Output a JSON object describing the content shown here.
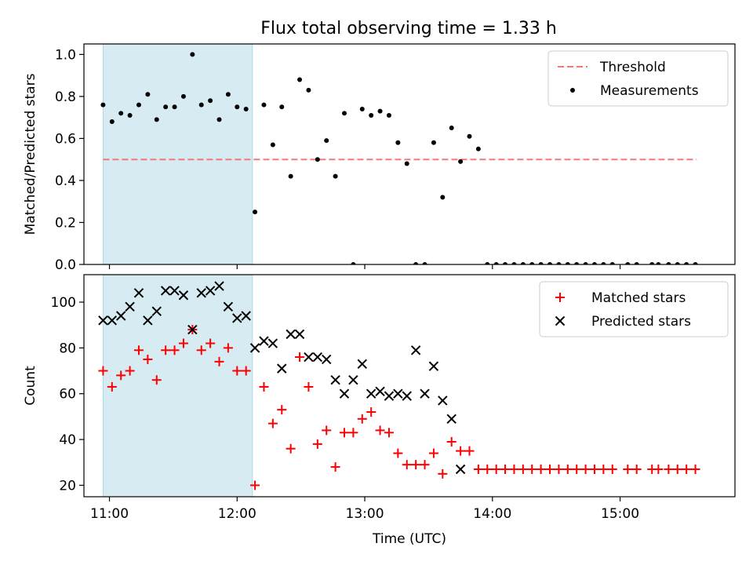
{
  "title": "Flux total observing time = 1.33 h",
  "chart_data": [
    {
      "type": "scatter",
      "ylabel": "Matched/Predicted stars",
      "xlim": [
        10.8,
        15.9
      ],
      "ylim": [
        0,
        1.05
      ],
      "yticks": [
        0.0,
        0.2,
        0.4,
        0.6,
        0.8,
        1.0
      ],
      "ytick_labels": [
        "0.0",
        "0.2",
        "0.4",
        "0.6",
        "0.8",
        "1.0"
      ],
      "shaded_region": [
        10.95,
        12.12
      ],
      "legend": {
        "placement": "upper-right",
        "entries": [
          "Threshold",
          "Measurements"
        ]
      },
      "colors": {
        "threshold": "#f07a7a",
        "measurements": "#000000",
        "shade": "#add8e6"
      },
      "threshold": {
        "name": "Threshold",
        "x": [
          10.95,
          15.6
        ],
        "y": 0.5,
        "style": "dashed"
      },
      "series": [
        {
          "name": "Measurements",
          "marker": "dot",
          "x": [
            10.95,
            11.02,
            11.09,
            11.16,
            11.23,
            11.3,
            11.37,
            11.44,
            11.51,
            11.58,
            11.65,
            11.72,
            11.79,
            11.86,
            11.93,
            12.0,
            12.07,
            12.14,
            12.21,
            12.28,
            12.35,
            12.42,
            12.49,
            12.56,
            12.63,
            12.7,
            12.77,
            12.84,
            12.91,
            12.98,
            13.05,
            13.12,
            13.19,
            13.26,
            13.33,
            13.4,
            13.47,
            13.54,
            13.61,
            13.68,
            13.75,
            13.82,
            13.89,
            13.96,
            14.03,
            14.1,
            14.17,
            14.24,
            14.31,
            14.38,
            14.45,
            14.52,
            14.59,
            14.66,
            14.73,
            14.8,
            14.87,
            14.94,
            15.06,
            15.13,
            15.25,
            15.3,
            15.38,
            15.45,
            15.52,
            15.59
          ],
          "y": [
            0.76,
            0.68,
            0.72,
            0.71,
            0.76,
            0.81,
            0.69,
            0.75,
            0.75,
            0.8,
            1.0,
            0.76,
            0.78,
            0.69,
            0.81,
            0.75,
            0.74,
            0.25,
            0.76,
            0.57,
            0.75,
            0.42,
            0.88,
            0.83,
            0.5,
            0.59,
            0.42,
            0.72,
            0.0,
            0.74,
            0.71,
            0.73,
            0.71,
            0.58,
            0.48,
            0.0,
            0.0,
            0.58,
            0.32,
            0.65,
            0.49,
            0.61,
            0.55,
            0.0,
            0.0,
            0.0,
            0.0,
            0.0,
            0.0,
            0.0,
            0.0,
            0.0,
            0.0,
            0.0,
            0.0,
            0.0,
            0.0,
            0.0,
            0.0,
            0.0,
            0.0,
            0.0,
            0.0,
            0.0,
            0.0,
            0.0
          ]
        }
      ]
    },
    {
      "type": "scatter",
      "xlabel": "Time (UTC)",
      "ylabel": "Count",
      "xlim": [
        10.8,
        15.9
      ],
      "ylim": [
        15,
        112
      ],
      "yticks": [
        20,
        40,
        60,
        80,
        100
      ],
      "ytick_labels": [
        "20",
        "40",
        "60",
        "80",
        "100"
      ],
      "xticks": [
        11,
        12,
        13,
        14,
        15
      ],
      "xtick_labels": [
        "11:00",
        "12:00",
        "13:00",
        "14:00",
        "15:00"
      ],
      "shaded_region": [
        10.95,
        12.12
      ],
      "legend": {
        "placement": "upper-right",
        "entries": [
          "Matched stars",
          "Predicted stars"
        ]
      },
      "colors": {
        "matched": "#ff0000",
        "predicted": "#000000",
        "shade": "#add8e6"
      },
      "series": [
        {
          "name": "Matched stars",
          "marker": "plus",
          "x": [
            10.95,
            11.02,
            11.09,
            11.16,
            11.23,
            11.3,
            11.37,
            11.44,
            11.51,
            11.58,
            11.65,
            11.72,
            11.79,
            11.86,
            11.93,
            12.0,
            12.07,
            12.14,
            12.21,
            12.28,
            12.35,
            12.42,
            12.49,
            12.56,
            12.63,
            12.7,
            12.77,
            12.84,
            12.91,
            12.98,
            13.05,
            13.12,
            13.19,
            13.26,
            13.33,
            13.4,
            13.47,
            13.54,
            13.61,
            13.68,
            13.75,
            13.82,
            13.89,
            13.96,
            14.03,
            14.1,
            14.17,
            14.24,
            14.31,
            14.38,
            14.45,
            14.52,
            14.59,
            14.66,
            14.73,
            14.8,
            14.87,
            14.94,
            15.06,
            15.13,
            15.25,
            15.3,
            15.38,
            15.45,
            15.52,
            15.59
          ],
          "y": [
            70,
            63,
            68,
            70,
            79,
            75,
            66,
            79,
            79,
            82,
            88,
            79,
            82,
            74,
            80,
            70,
            70,
            20,
            63,
            47,
            53,
            36,
            76,
            63,
            38,
            44,
            28,
            43,
            43,
            49,
            52,
            44,
            43,
            34,
            29,
            29,
            29,
            34,
            25,
            39,
            35,
            35,
            27,
            27,
            27,
            27,
            27,
            27,
            27,
            27,
            27,
            27,
            27,
            27,
            27,
            27,
            27,
            27,
            27,
            27,
            27,
            27,
            27,
            27,
            27,
            27
          ]
        },
        {
          "name": "Predicted stars",
          "marker": "x",
          "x": [
            10.95,
            11.02,
            11.09,
            11.16,
            11.23,
            11.3,
            11.37,
            11.44,
            11.51,
            11.58,
            11.65,
            11.72,
            11.79,
            11.86,
            11.93,
            12.0,
            12.07,
            12.14,
            12.21,
            12.28,
            12.35,
            12.42,
            12.49,
            12.56,
            12.63,
            12.7,
            12.77,
            12.84,
            12.91,
            12.98,
            13.05,
            13.12,
            13.19,
            13.26,
            13.33,
            13.4,
            13.47,
            13.54,
            13.61,
            13.68,
            13.75
          ],
          "y": [
            92,
            92,
            94,
            98,
            104,
            92,
            96,
            105,
            105,
            103,
            88,
            104,
            105,
            107,
            98,
            93,
            94,
            80,
            83,
            82,
            71,
            86,
            86,
            76,
            76,
            75,
            66,
            60,
            66,
            73,
            60,
            61,
            59,
            60,
            59,
            79,
            60,
            72,
            57,
            49,
            27
          ]
        }
      ]
    }
  ]
}
